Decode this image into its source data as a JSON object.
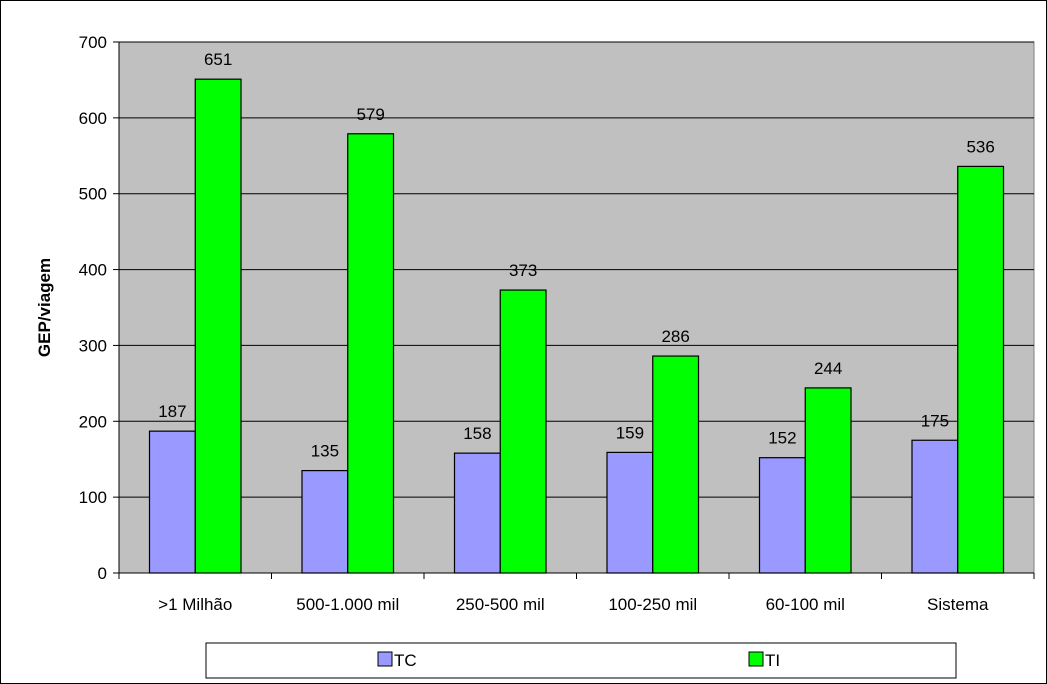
{
  "chart_data": {
    "type": "bar",
    "title": "",
    "xlabel": "",
    "ylabel": "GEP/viagem",
    "ylim": [
      0,
      700
    ],
    "yticks": [
      0,
      100,
      200,
      300,
      400,
      500,
      600,
      700
    ],
    "categories": [
      ">1 Milhão",
      "500-1.000 mil",
      "250-500 mil",
      "100-250 mil",
      "60-100 mil",
      "Sistema"
    ],
    "series": [
      {
        "name": "TC",
        "values": [
          187,
          135,
          158,
          159,
          152,
          175
        ],
        "color": "#9999ff"
      },
      {
        "name": "TI",
        "values": [
          651,
          579,
          373,
          286,
          244,
          536
        ],
        "color": "#00ff00"
      }
    ],
    "plot_background": "#c0c0c0",
    "grid": true,
    "legend_position": "bottom"
  }
}
